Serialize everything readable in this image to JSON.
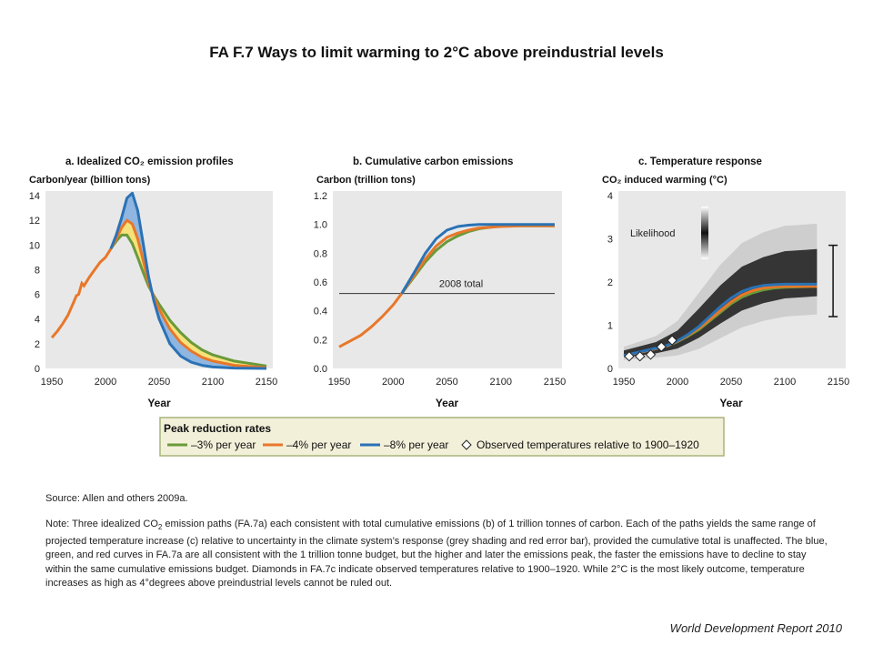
{
  "page": {
    "title": "FA F.7 Ways to limit warming to 2°C above preindustrial levels",
    "source": "Source: Allen and others 2009a.",
    "note_prefix": "Note: Three idealized CO",
    "note_sub": "2",
    "note_rest": " emission paths (FA.7a) each consistent with total cumulative emissions (b) of 1 trillion tonnes of carbon. Each of the paths yields the same range of projected temperature increase (c) relative to uncertainty in the climate system’s response (grey shading and red error bar), provided the cumulative total is unaffected. The blue, green, and red curves in FA.7a are all consistent with the 1 trillion tonne budget, but the higher and later the emissions peak, the faster the emissions have to decline to stay within the same cumulative emissions budget. Diamonds in FA.7c indicate observed temperatures relative to 1900–1920. While 2°C is the most likely outcome, temperature increases as high as 4°degrees above preindustrial levels cannot be ruled out.",
    "footer": "World Development Report 2010"
  },
  "colors": {
    "green": "#6a9a3a",
    "orange": "#e8772a",
    "blue": "#2a72b5",
    "fill_blue": "#8fb6e0",
    "fill_yellow": "#f5e27a",
    "panel_bg": "#e8e8e8",
    "legend_bg": "#f3f0da",
    "legend_border": "#a8b47a"
  },
  "chart_data": [
    {
      "type": "line",
      "panel": "a",
      "title": "a. Idealized CO₂ emission profiles",
      "ylabel": "Carbon/year (billion tons)",
      "xlabel": "Year",
      "xlim": [
        1950,
        2150
      ],
      "ylim": [
        0,
        14
      ],
      "xticks": [
        1950,
        2000,
        2050,
        2100,
        2150
      ],
      "yticks": [
        0,
        2,
        4,
        6,
        8,
        10,
        12,
        14
      ],
      "historical": {
        "x": [
          1950,
          1955,
          1960,
          1965,
          1970,
          1973,
          1975,
          1978,
          1980,
          1985,
          1990,
          1995,
          2000,
          2005
        ],
        "y": [
          2.5,
          3.0,
          3.6,
          4.3,
          5.3,
          5.9,
          6.0,
          6.9,
          6.7,
          7.4,
          8.0,
          8.6,
          9.0,
          9.7
        ]
      },
      "series": [
        {
          "name": "–3% per year",
          "color": "green",
          "x": [
            2005,
            2010,
            2015,
            2020,
            2025,
            2030,
            2035,
            2040,
            2045,
            2050,
            2060,
            2070,
            2080,
            2090,
            2100,
            2120,
            2150
          ],
          "y": [
            9.7,
            10.3,
            10.8,
            10.8,
            10.1,
            9.0,
            7.8,
            6.7,
            5.9,
            5.2,
            3.9,
            2.9,
            2.1,
            1.5,
            1.1,
            0.6,
            0.2
          ]
        },
        {
          "name": "–4% per year",
          "color": "orange",
          "x": [
            2005,
            2010,
            2015,
            2020,
            2025,
            2030,
            2035,
            2040,
            2045,
            2050,
            2060,
            2070,
            2080,
            2090,
            2100,
            2120,
            2150
          ],
          "y": [
            9.7,
            10.5,
            11.4,
            12.0,
            11.7,
            10.5,
            8.8,
            7.0,
            5.8,
            4.8,
            3.2,
            2.1,
            1.4,
            0.9,
            0.6,
            0.25,
            0.05
          ]
        },
        {
          "name": "–8% per year",
          "color": "blue",
          "x": [
            2005,
            2010,
            2015,
            2020,
            2025,
            2030,
            2035,
            2040,
            2045,
            2050,
            2060,
            2070,
            2080,
            2090,
            2100,
            2120,
            2150
          ],
          "y": [
            9.7,
            10.8,
            12.2,
            13.8,
            14.2,
            12.8,
            10.2,
            7.5,
            5.5,
            4.0,
            2.0,
            1.0,
            0.5,
            0.25,
            0.12,
            0.03,
            0.0
          ]
        }
      ]
    },
    {
      "type": "line",
      "panel": "b",
      "title": "b. Cumulative carbon emissions",
      "ylabel": "Carbon (trillion tons)",
      "xlabel": "Year",
      "xlim": [
        1950,
        2150
      ],
      "ylim": [
        0,
        1.2
      ],
      "xticks": [
        1950,
        2000,
        2050,
        2100,
        2150
      ],
      "yticks": [
        "0.0",
        "0.2",
        "0.4",
        "0.6",
        "0.8",
        "1.0",
        "1.2"
      ],
      "reference_line": {
        "y": 0.52,
        "label": "2008 total"
      },
      "historical": {
        "x": [
          1950,
          1960,
          1970,
          1980,
          1990,
          2000,
          2008
        ],
        "y": [
          0.15,
          0.19,
          0.23,
          0.29,
          0.36,
          0.44,
          0.52
        ]
      },
      "series": [
        {
          "name": "–3% per year",
          "color": "green",
          "x": [
            2008,
            2020,
            2030,
            2040,
            2050,
            2060,
            2070,
            2080,
            2100,
            2120,
            2150
          ],
          "y": [
            0.52,
            0.64,
            0.74,
            0.82,
            0.88,
            0.92,
            0.95,
            0.97,
            0.99,
            0.99,
            0.99
          ]
        },
        {
          "name": "–4% per year",
          "color": "orange",
          "x": [
            2008,
            2020,
            2030,
            2040,
            2050,
            2060,
            2070,
            2080,
            2100,
            2120,
            2150
          ],
          "y": [
            0.52,
            0.65,
            0.76,
            0.85,
            0.91,
            0.94,
            0.96,
            0.975,
            0.985,
            0.99,
            0.99
          ]
        },
        {
          "name": "–8% per year",
          "color": "blue",
          "x": [
            2008,
            2020,
            2030,
            2040,
            2050,
            2060,
            2070,
            2080,
            2100,
            2120,
            2150
          ],
          "y": [
            0.52,
            0.67,
            0.8,
            0.9,
            0.96,
            0.985,
            0.995,
            1.0,
            1.0,
            1.0,
            1.0
          ]
        }
      ]
    },
    {
      "type": "line",
      "panel": "c",
      "title": "c. Temperature response",
      "ylabel": "CO₂ induced warming (°C)",
      "xlabel": "Year",
      "xlim": [
        1950,
        2150
      ],
      "ylim": [
        0,
        4
      ],
      "xticks": [
        1950,
        2000,
        2050,
        2100,
        2150
      ],
      "yticks": [
        0,
        1,
        2,
        3,
        4
      ],
      "likelihood_label": "Likelihood",
      "uncertainty": {
        "x": [
          1950,
          1980,
          2000,
          2020,
          2040,
          2060,
          2080,
          2100,
          2130
        ],
        "low": [
          0.2,
          0.25,
          0.3,
          0.45,
          0.7,
          0.95,
          1.1,
          1.2,
          1.25
        ],
        "high": [
          0.5,
          0.75,
          1.1,
          1.75,
          2.4,
          2.9,
          3.15,
          3.3,
          3.35
        ]
      },
      "error_bar": {
        "x": 2145,
        "low": 1.2,
        "high": 2.85
      },
      "series": [
        {
          "name": "–3% per year",
          "color": "green",
          "x": [
            1950,
            1970,
            1990,
            2000,
            2010,
            2020,
            2030,
            2040,
            2050,
            2060,
            2070,
            2080,
            2090,
            2100,
            2130
          ],
          "y": [
            0.3,
            0.4,
            0.52,
            0.62,
            0.75,
            0.9,
            1.1,
            1.3,
            1.5,
            1.65,
            1.75,
            1.82,
            1.86,
            1.88,
            1.9
          ]
        },
        {
          "name": "–4% per year",
          "color": "orange",
          "x": [
            1950,
            1970,
            1990,
            2000,
            2010,
            2020,
            2030,
            2040,
            2050,
            2060,
            2070,
            2080,
            2090,
            2100,
            2130
          ],
          "y": [
            0.3,
            0.4,
            0.52,
            0.63,
            0.77,
            0.93,
            1.13,
            1.34,
            1.54,
            1.7,
            1.8,
            1.86,
            1.89,
            1.9,
            1.9
          ]
        },
        {
          "name": "–8% per year",
          "color": "blue",
          "x": [
            1950,
            1970,
            1990,
            2000,
            2010,
            2020,
            2030,
            2040,
            2050,
            2060,
            2070,
            2080,
            2090,
            2100,
            2130
          ],
          "y": [
            0.3,
            0.41,
            0.53,
            0.64,
            0.79,
            0.97,
            1.2,
            1.43,
            1.63,
            1.78,
            1.87,
            1.92,
            1.94,
            1.95,
            1.95
          ]
        }
      ],
      "observed": {
        "name": "Observed temperatures relative to 1900–1920",
        "x": [
          1955,
          1965,
          1975,
          1985,
          1995
        ],
        "y": [
          0.28,
          0.28,
          0.32,
          0.5,
          0.65
        ]
      }
    }
  ],
  "legend": {
    "title": "Peak reduction rates",
    "items": [
      {
        "label": "–3% per year",
        "color": "green"
      },
      {
        "label": "–4% per year",
        "color": "orange"
      },
      {
        "label": "–8% per year",
        "color": "blue"
      }
    ],
    "observed_label": "Observed temperatures relative to 1900–1920"
  }
}
